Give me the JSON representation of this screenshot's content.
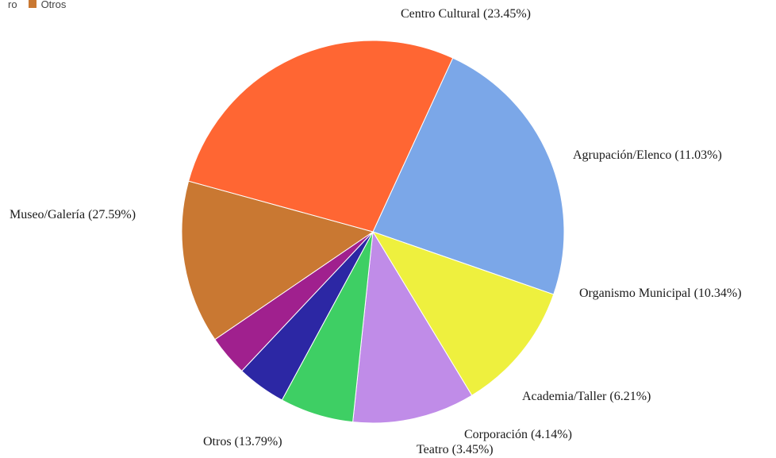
{
  "legend": {
    "items": [
      {
        "label": "ro",
        "color": "#ffffff"
      },
      {
        "label": "Otros",
        "color": "#c97832"
      }
    ]
  },
  "chart_data": {
    "type": "pie",
    "title": "",
    "slices": [
      {
        "name": "Centro Cultural",
        "value": 23.45,
        "label": "Centro Cultural (23.45%)",
        "color": "#7ba7e8"
      },
      {
        "name": "Agrupación/Elenco",
        "value": 11.03,
        "label": "Agrupación/Elenco (11.03%)",
        "color": "#eef03e"
      },
      {
        "name": "Organismo Municipal",
        "value": 10.34,
        "label": "Organismo Municipal (10.34%)",
        "color": "#c08ce8"
      },
      {
        "name": "Academia/Taller",
        "value": 6.21,
        "label": "Academia/Taller (6.21%)",
        "color": "#3ecf64"
      },
      {
        "name": "Corporación",
        "value": 4.14,
        "label": "Corporación (4.14%)",
        "color": "#2c27a4"
      },
      {
        "name": "Teatro",
        "value": 3.45,
        "label": "Teatro (3.45%)",
        "color": "#a0208e"
      },
      {
        "name": "Otros",
        "value": 13.79,
        "label": "Otros (13.79%)",
        "color": "#c97832"
      },
      {
        "name": "Museo/Galería",
        "value": 27.59,
        "label": "Museo/Galería (27.59%)",
        "color": "#ff6633"
      }
    ],
    "start_angle_deg": -65.3,
    "direction": "clockwise",
    "legend_position": "top-left"
  }
}
